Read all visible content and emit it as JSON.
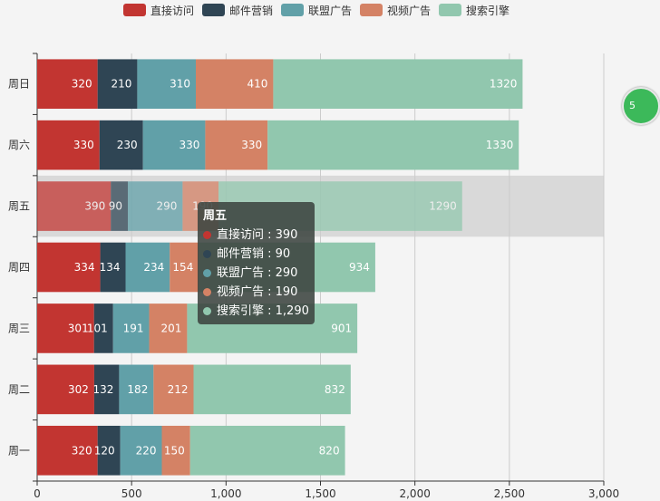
{
  "chart_data": {
    "type": "bar",
    "orientation": "horizontal",
    "stacked": true,
    "categories": [
      "周一",
      "周二",
      "周三",
      "周四",
      "周五",
      "周六",
      "周日"
    ],
    "series": [
      {
        "name": "直接访问",
        "color": "#c23531",
        "values": [
          320,
          302,
          301,
          334,
          390,
          330,
          320
        ]
      },
      {
        "name": "邮件营销",
        "color": "#2f4554",
        "values": [
          120,
          132,
          101,
          134,
          90,
          230,
          210
        ]
      },
      {
        "name": "联盟广告",
        "color": "#61a0a8",
        "values": [
          220,
          182,
          191,
          234,
          290,
          330,
          310
        ]
      },
      {
        "name": "视频广告",
        "color": "#d48265",
        "values": [
          150,
          212,
          201,
          154,
          190,
          330,
          410
        ]
      },
      {
        "name": "搜索引擎",
        "color": "#91c7ae",
        "values": [
          820,
          832,
          901,
          934,
          1290,
          1330,
          1320
        ]
      }
    ],
    "xlim": [
      0,
      3000
    ],
    "x_ticks": [
      "0",
      "500",
      "1,000",
      "1,500",
      "2,000",
      "2,500",
      "3,000"
    ],
    "grid": true,
    "legend_position": "top",
    "highlighted_category": "周五"
  },
  "tooltip": {
    "title": "周五",
    "rows": [
      {
        "label": "直接访问 : 390",
        "color": "#c23531"
      },
      {
        "label": "邮件营销 : 90",
        "color": "#2f4554"
      },
      {
        "label": "联盟广告 : 290",
        "color": "#61a0a8"
      },
      {
        "label": "视频广告 : 190",
        "color": "#d48265"
      },
      {
        "label": "搜索引擎 : 1,290",
        "color": "#91c7ae"
      }
    ]
  },
  "badge": {
    "text": "5"
  }
}
